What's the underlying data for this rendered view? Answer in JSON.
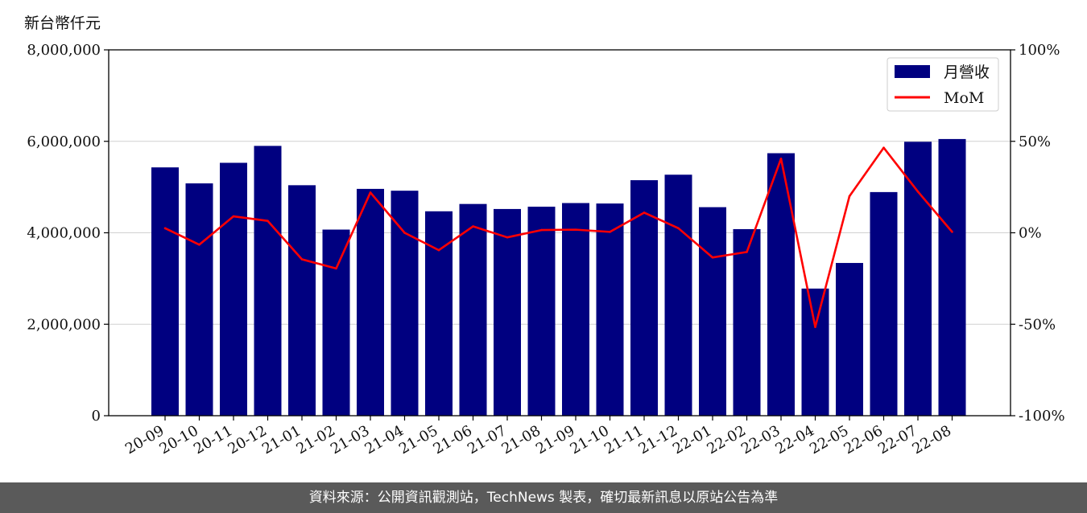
{
  "unit_label": "新台幣仟元",
  "footer_text": "資料來源：公開資訊觀測站，TechNews 製表，確切最新訊息以原站公告為準",
  "chart_data": {
    "type": "bar",
    "categories": [
      "20-09",
      "20-10",
      "20-11",
      "20-12",
      "21-01",
      "21-02",
      "21-03",
      "21-04",
      "21-05",
      "21-06",
      "21-07",
      "21-08",
      "21-09",
      "21-10",
      "21-11",
      "21-12",
      "22-01",
      "22-02",
      "22-03",
      "22-04",
      "22-05",
      "22-06",
      "22-07",
      "22-08"
    ],
    "series": [
      {
        "name": "月營收",
        "type": "bar",
        "axis": "left",
        "color": "#000080",
        "values": [
          5430000,
          5080000,
          5530000,
          5900000,
          5040000,
          4070000,
          4960000,
          4920000,
          4470000,
          4630000,
          4520000,
          4570000,
          4650000,
          4640000,
          5150000,
          5270000,
          4560000,
          4080000,
          5740000,
          2780000,
          3340000,
          4890000,
          5990000,
          6050000
        ]
      },
      {
        "name": "MoM",
        "type": "line",
        "axis": "right",
        "color": "#ff0000",
        "values": [
          2.5,
          -6.5,
          9,
          6.5,
          -14.5,
          -19.5,
          22,
          0,
          -9.5,
          3.5,
          -2.5,
          1.5,
          1.7,
          0.5,
          11,
          2.5,
          -13.5,
          -10.5,
          40.5,
          -51.5,
          20,
          46.5,
          22.5,
          0.5
        ]
      }
    ],
    "y_left": {
      "ylim": [
        0,
        8000000
      ],
      "ticks": [
        0,
        2000000,
        4000000,
        6000000,
        8000000
      ],
      "tick_labels": [
        "0",
        "2,000,000",
        "4,000,000",
        "6,000,000",
        "8,000,000"
      ]
    },
    "y_right": {
      "ylim": [
        -100,
        100
      ],
      "ticks": [
        -100,
        -50,
        0,
        50,
        100
      ],
      "tick_labels": [
        "-100%",
        "-50%",
        "0%",
        "50%",
        "100%"
      ]
    },
    "grid": true,
    "legend_position": "top-right"
  }
}
